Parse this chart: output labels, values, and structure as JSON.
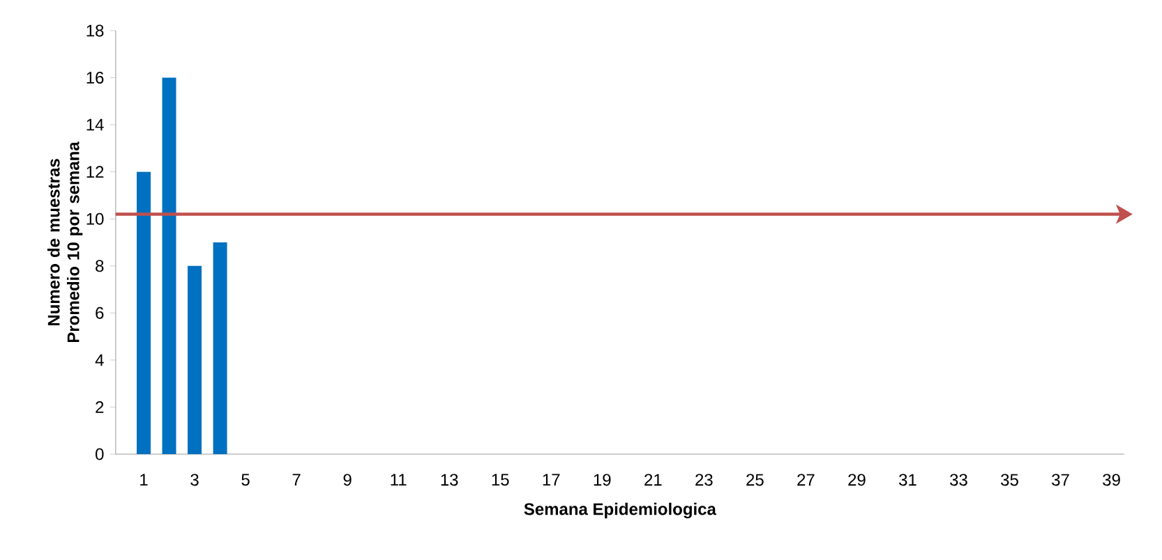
{
  "chart_data": {
    "type": "bar",
    "xlabel": "Semana Epidemiologica",
    "ylabel": "Numero de muestras Promedio 10 por semana",
    "categories": [
      "1",
      null,
      "3",
      null,
      "5",
      null,
      "7",
      null,
      "9",
      null,
      "11",
      null,
      "13",
      null,
      "15",
      null,
      "17",
      null,
      "19",
      null,
      "21",
      null,
      "23",
      null,
      "25",
      null,
      "27",
      null,
      "29",
      null,
      "31",
      null,
      "33",
      null,
      "35",
      null,
      "37",
      null,
      "39"
    ],
    "values": [
      12,
      16,
      8,
      9,
      null,
      null,
      null,
      null,
      null,
      null,
      null,
      null,
      null,
      null,
      null,
      null,
      null,
      null,
      null,
      null,
      null,
      null,
      null,
      null,
      null,
      null,
      null,
      null,
      null,
      null,
      null,
      null,
      null,
      null,
      null,
      null,
      null,
      null,
      null
    ],
    "color": "#0070c0",
    "ylim": [
      0,
      18
    ],
    "yticks": [
      0,
      2,
      4,
      6,
      8,
      10,
      12,
      14,
      16,
      18
    ],
    "grid": false,
    "ref_lines": [
      {
        "axis": "y",
        "value": 10.2,
        "label": null,
        "color": "#c0504d",
        "line_style": "solid"
      }
    ]
  }
}
